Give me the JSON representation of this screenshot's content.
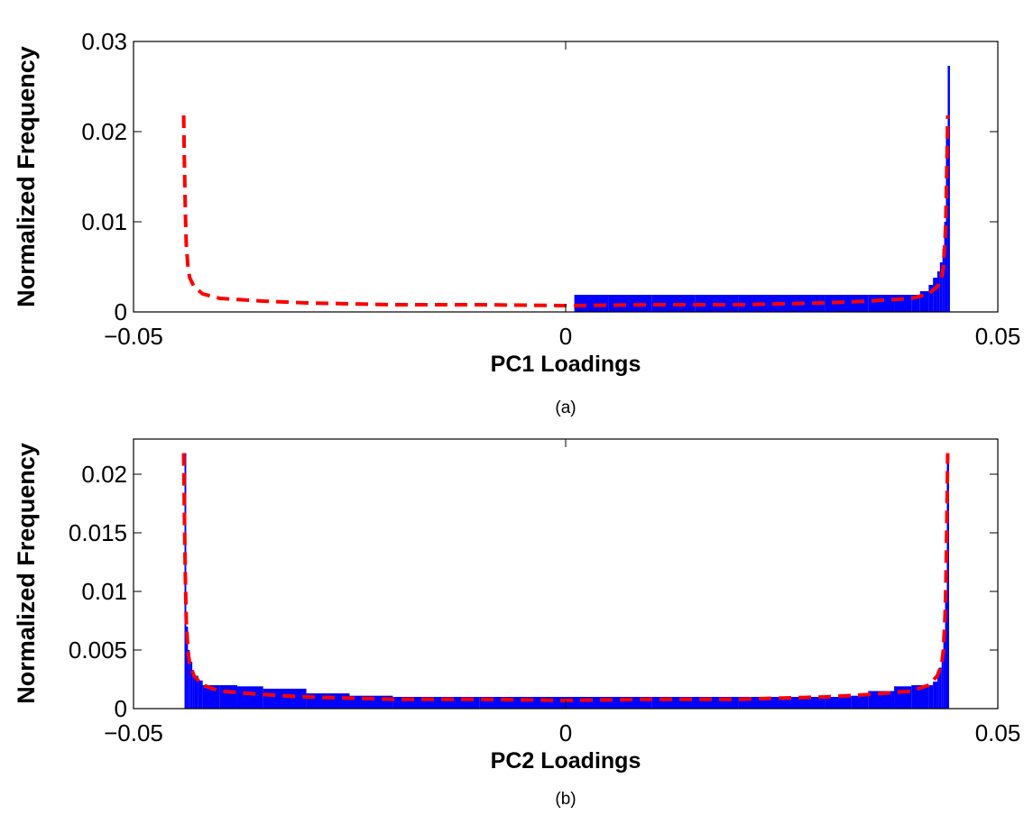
{
  "chart_data": [
    {
      "type": "bar",
      "panel_label": "(a)",
      "xlabel": "PC1 Loadings",
      "ylabel": "Normalized Frequency",
      "xlim": [
        -0.05,
        0.05
      ],
      "ylim": [
        0,
        0.03
      ],
      "xticks": [
        -0.05,
        0,
        0.05
      ],
      "xtick_labels": [
        "−0.05",
        "0",
        "0.05"
      ],
      "yticks": [
        0,
        0.01,
        0.02,
        0.03
      ],
      "ytick_labels": [
        "0",
        "0.01",
        "0.02",
        "0.03"
      ],
      "grid": false,
      "legend": "none",
      "colors": {
        "histogram": "#0000ff",
        "fit": "#ff0000"
      },
      "histogram": {
        "x": [
          0.001,
          0.005,
          0.01,
          0.015,
          0.02,
          0.025,
          0.03,
          0.035,
          0.038,
          0.04,
          0.041,
          0.042,
          0.0425,
          0.043,
          0.0433,
          0.0436,
          0.0438,
          0.044,
          0.0442
        ],
        "y": [
          0.0019,
          0.0019,
          0.0019,
          0.0019,
          0.0019,
          0.0019,
          0.0019,
          0.0019,
          0.0019,
          0.0019,
          0.0023,
          0.003,
          0.0038,
          0.0045,
          0.0055,
          0.007,
          0.01,
          0.02,
          0.0273
        ]
      },
      "fit_curve": {
        "style": "dashed",
        "x": [
          -0.0442,
          -0.0441,
          -0.044,
          -0.0439,
          -0.0437,
          -0.0435,
          -0.043,
          -0.042,
          -0.04,
          -0.035,
          -0.03,
          -0.02,
          -0.01,
          0,
          0.01,
          0.02,
          0.03,
          0.035,
          0.04,
          0.042,
          0.043,
          0.0435,
          0.0437,
          0.0439,
          0.044,
          0.0441,
          0.0442
        ],
        "y": [
          0.0218,
          0.016,
          0.011,
          0.0075,
          0.005,
          0.0038,
          0.0028,
          0.002,
          0.0015,
          0.0012,
          0.001,
          0.0008,
          0.0008,
          0.0007,
          0.0008,
          0.0008,
          0.001,
          0.0012,
          0.0015,
          0.002,
          0.0028,
          0.0038,
          0.005,
          0.008,
          0.011,
          0.016,
          0.0218
        ]
      }
    },
    {
      "type": "bar",
      "panel_label": "(b)",
      "xlabel": "PC2 Loadings",
      "ylabel": "Normalized Frequency",
      "xlim": [
        -0.05,
        0.05
      ],
      "ylim": [
        0,
        0.023
      ],
      "xticks": [
        -0.05,
        0,
        0.05
      ],
      "xtick_labels": [
        "−0.05",
        "0",
        "0.05"
      ],
      "yticks": [
        0,
        0.005,
        0.01,
        0.015,
        0.02
      ],
      "ytick_labels": [
        "0",
        "0.005",
        "0.01",
        "0.015",
        "0.02"
      ],
      "grid": false,
      "legend": "none",
      "colors": {
        "histogram": "#0000ff",
        "fit": "#ff0000"
      },
      "histogram": {
        "x": [
          -0.0441,
          -0.0439,
          -0.0437,
          -0.0435,
          -0.0432,
          -0.043,
          -0.0425,
          -0.042,
          -0.04,
          -0.038,
          -0.035,
          -0.03,
          -0.025,
          -0.02,
          -0.01,
          0,
          0.01,
          0.02,
          0.025,
          0.03,
          0.033,
          0.035,
          0.038,
          0.04,
          0.042,
          0.0425,
          0.043,
          0.0432,
          0.0435,
          0.0437,
          0.0439,
          0.0441
        ],
        "y": [
          0.0218,
          0.007,
          0.005,
          0.004,
          0.0033,
          0.0028,
          0.0024,
          0.002,
          0.002,
          0.0019,
          0.0017,
          0.0013,
          0.0011,
          0.001,
          0.001,
          0.001,
          0.001,
          0.001,
          0.001,
          0.001,
          0.0011,
          0.0015,
          0.0019,
          0.002,
          0.002,
          0.0023,
          0.0028,
          0.0035,
          0.0045,
          0.006,
          0.01,
          0.021
        ]
      },
      "fit_curve": {
        "style": "dashed",
        "x": [
          -0.0442,
          -0.0441,
          -0.044,
          -0.0439,
          -0.0437,
          -0.0435,
          -0.043,
          -0.042,
          -0.04,
          -0.035,
          -0.03,
          -0.02,
          -0.01,
          0,
          0.01,
          0.02,
          0.03,
          0.035,
          0.04,
          0.042,
          0.043,
          0.0435,
          0.0437,
          0.0439,
          0.044,
          0.0441,
          0.0442
        ],
        "y": [
          0.0218,
          0.016,
          0.011,
          0.0075,
          0.005,
          0.0038,
          0.0028,
          0.002,
          0.0015,
          0.0012,
          0.001,
          0.0008,
          0.0008,
          0.0007,
          0.0008,
          0.0008,
          0.001,
          0.0012,
          0.0015,
          0.002,
          0.0028,
          0.0038,
          0.005,
          0.008,
          0.011,
          0.016,
          0.0218
        ]
      }
    }
  ]
}
